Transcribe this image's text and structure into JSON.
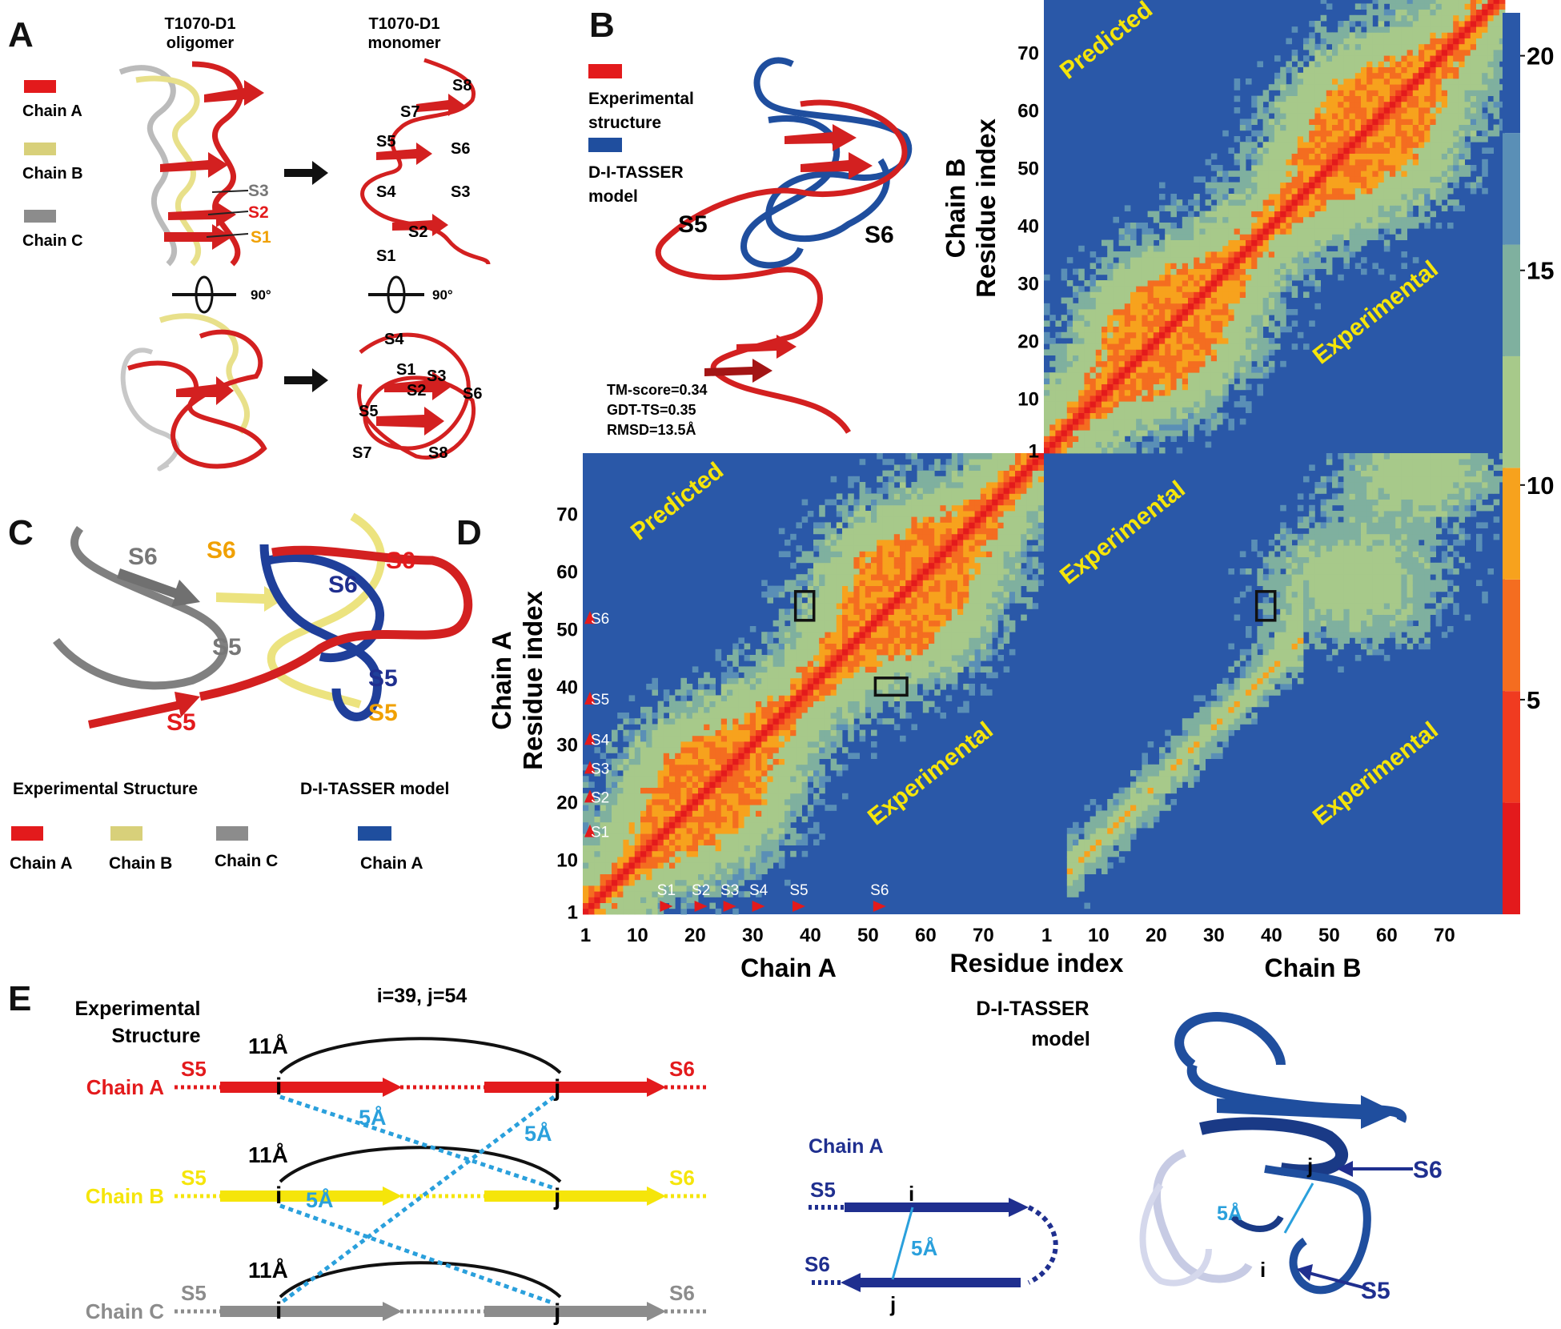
{
  "panels": {
    "A": "A",
    "B": "B",
    "C": "C",
    "D": "D",
    "E": "E"
  },
  "panelA": {
    "oligomer_title": [
      "T1070-D1",
      "oligomer"
    ],
    "monomer_title": [
      "T1070-D1",
      "monomer"
    ],
    "legend": [
      {
        "label": "Chain A",
        "color": "#e31a1c"
      },
      {
        "label": "Chain B",
        "color": "#d8d07a"
      },
      {
        "label": "Chain C",
        "color": "#8c8c8c"
      }
    ],
    "rotation": "90°",
    "oligomer_strands": [
      {
        "label": "S3",
        "color": "#777777"
      },
      {
        "label": "S2",
        "color": "#e31a1c"
      },
      {
        "label": "S1",
        "color": "#f0a000"
      }
    ],
    "monomer_top_strands": [
      "S8",
      "S7",
      "S5",
      "S6",
      "S4",
      "S3",
      "S2",
      "S1"
    ],
    "monomer_bottom_strands": [
      "S4",
      "S1",
      "S3",
      "S2",
      "S6",
      "S5",
      "S7",
      "S8"
    ]
  },
  "panelB": {
    "legend": [
      {
        "label": [
          "Experimental",
          "structure"
        ],
        "color": "#e31a1c"
      },
      {
        "label": [
          "D-I-TASSER",
          "model"
        ],
        "color": "#1f4e9e"
      }
    ],
    "strand_labels": [
      "S5",
      "S6"
    ],
    "metrics": [
      "TM-score=0.34",
      "GDT-TS=0.35",
      "RMSD=13.5Å"
    ]
  },
  "panelC": {
    "strand_labels": [
      {
        "text": "S6",
        "color": "#777777"
      },
      {
        "text": "S6",
        "color": "#f0a000"
      },
      {
        "text": "S6",
        "color": "#e31a1c"
      },
      {
        "text": "S6",
        "color": "#1f2f8f"
      },
      {
        "text": "S5",
        "color": "#777777"
      },
      {
        "text": "S5",
        "color": "#1f2f8f"
      },
      {
        "text": "S5",
        "color": "#f0a000"
      },
      {
        "text": "S5",
        "color": "#e31a1c"
      }
    ],
    "headings": [
      "Experimental Structure",
      "D-I-TASSER model"
    ],
    "legend": [
      {
        "label": "Chain A",
        "color": "#e31a1c"
      },
      {
        "label": "Chain B",
        "color": "#d8d07a"
      },
      {
        "label": "Chain C",
        "color": "#8c8c8c"
      },
      {
        "label": "Chain A",
        "color": "#1f4e9e"
      }
    ]
  },
  "chart_data": {
    "type": "heatmap",
    "description_axes": {
      "x_left_label": "Chain A",
      "x_center_label": "Residue index",
      "x_right_label": "Chain B",
      "y_lower_label": [
        "Chain A",
        "Residue index"
      ],
      "y_upper_label": [
        "Chain B",
        "Residue index"
      ]
    },
    "x_ticks_chainA": [
      "1",
      "10",
      "20",
      "30",
      "40",
      "50",
      "60",
      "70"
    ],
    "x_ticks_chainB": [
      "1",
      "10",
      "20",
      "30",
      "40",
      "50",
      "60",
      "70"
    ],
    "y_ticks_chainA": [
      "1",
      "10",
      "20",
      "30",
      "40",
      "50",
      "60",
      "70"
    ],
    "y_ticks_chainB": [
      "1",
      "10",
      "20",
      "30",
      "40",
      "50",
      "60",
      "70"
    ],
    "residues_per_chain": 80,
    "colorbar": {
      "min": 0,
      "max": 21,
      "ticks": [
        "5",
        "10",
        "15",
        "20"
      ],
      "colors": [
        "#e31a1c",
        "#f03b20",
        "#f46d20",
        "#f7a21d",
        "#a7c98a",
        "#7fb09f",
        "#5a8fb6",
        "#2a58a8"
      ]
    },
    "quadrant_labels": [
      "Predicted",
      "Experimental",
      "Predicted",
      "Experimental",
      "Experimental",
      "Experimental"
    ],
    "strand_markers": [
      {
        "label": "S1",
        "residue": 15
      },
      {
        "label": "S2",
        "residue": 21
      },
      {
        "label": "S3",
        "residue": 26
      },
      {
        "label": "S4",
        "residue": 31
      },
      {
        "label": "S5",
        "residue": 38
      },
      {
        "label": "S6",
        "residue": 52
      }
    ],
    "highlight_contacts": [
      {
        "x": 39,
        "y": 54,
        "quadrant": "A-A"
      },
      {
        "x": 54,
        "y": 40,
        "quadrant": "A-A"
      },
      {
        "x": 39,
        "y": 54,
        "quadrant": "A-B"
      }
    ]
  },
  "panelE": {
    "title": "i=39, j=54",
    "exp_heading": [
      "Experimental",
      "Structure"
    ],
    "model_heading": [
      "D-I-TASSER",
      "model"
    ],
    "chains": [
      {
        "name": "Chain A",
        "color": "#e31a1c"
      },
      {
        "name": "Chain B",
        "color": "#f5e50a"
      },
      {
        "name": "Chain C",
        "color": "#8c8c8c"
      }
    ],
    "s5": "S5",
    "s6": "S6",
    "dist_long": "11Å",
    "dist_short": "5Å",
    "i": "i",
    "j": "j",
    "model_chain": "Chain A",
    "model_labels": [
      "S5",
      "S6",
      "5Å",
      "j",
      "i",
      "S6",
      "S5"
    ]
  }
}
